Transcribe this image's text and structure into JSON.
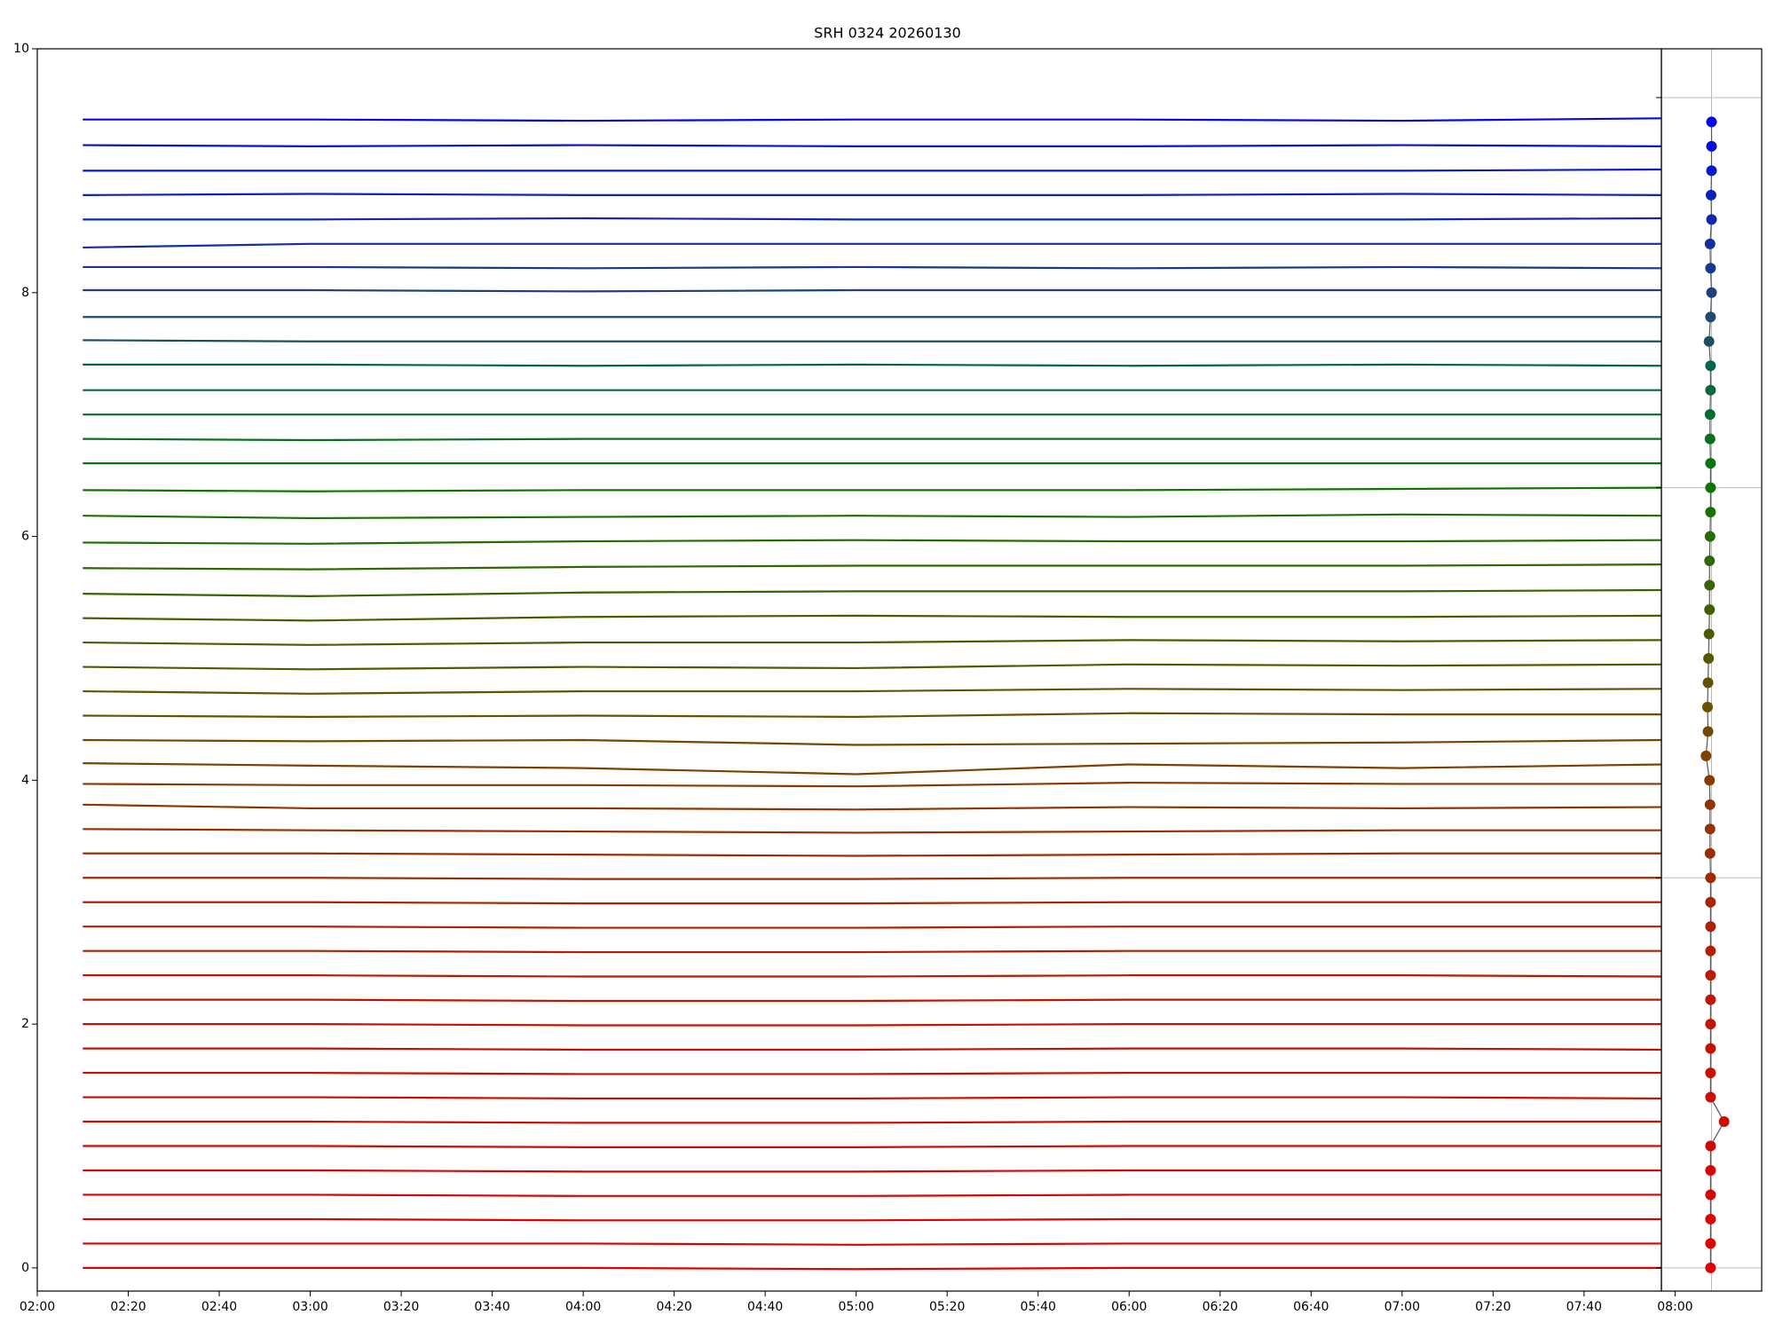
{
  "chart_data": [
    {
      "type": "line",
      "title": "SRH 0324 20260130",
      "x": [
        130,
        180,
        240,
        300,
        360,
        420,
        477
      ],
      "xlim": [
        120,
        477
      ],
      "xticks": [
        {
          "value": 120,
          "label": "02:00"
        },
        {
          "value": 140,
          "label": "02:20"
        },
        {
          "value": 160,
          "label": "02:40"
        },
        {
          "value": 180,
          "label": "03:00"
        },
        {
          "value": 200,
          "label": "03:20"
        },
        {
          "value": 220,
          "label": "03:40"
        },
        {
          "value": 240,
          "label": "04:00"
        },
        {
          "value": 260,
          "label": "04:20"
        },
        {
          "value": 280,
          "label": "04:40"
        },
        {
          "value": 300,
          "label": "05:00"
        },
        {
          "value": 320,
          "label": "05:20"
        },
        {
          "value": 340,
          "label": "05:40"
        },
        {
          "value": 360,
          "label": "06:00"
        },
        {
          "value": 380,
          "label": "06:20"
        },
        {
          "value": 400,
          "label": "06:40"
        },
        {
          "value": 420,
          "label": "07:00"
        },
        {
          "value": 440,
          "label": "07:20"
        },
        {
          "value": 460,
          "label": "07:40"
        },
        {
          "value": 480,
          "label": "08:00"
        }
      ],
      "ylim": [
        -0.19,
        10
      ],
      "yticks": [
        0,
        2,
        4,
        6,
        8,
        10
      ],
      "series": [
        {
          "color": "#e00000",
          "values": [
            0.0,
            0.0,
            0.0,
            -0.01,
            0.0,
            0.0,
            0.0
          ]
        },
        {
          "color": "#dd0200",
          "values": [
            0.2,
            0.2,
            0.2,
            0.19,
            0.2,
            0.2,
            0.2
          ]
        },
        {
          "color": "#da0400",
          "values": [
            0.4,
            0.4,
            0.39,
            0.39,
            0.4,
            0.4,
            0.4
          ]
        },
        {
          "color": "#d70600",
          "values": [
            0.6,
            0.6,
            0.59,
            0.59,
            0.6,
            0.6,
            0.6
          ]
        },
        {
          "color": "#d40800",
          "values": [
            0.8,
            0.8,
            0.79,
            0.79,
            0.8,
            0.8,
            0.8
          ]
        },
        {
          "color": "#d10a00",
          "values": [
            1.0,
            1.0,
            0.99,
            0.99,
            1.0,
            1.0,
            1.0
          ]
        },
        {
          "color": "#ce0c00",
          "values": [
            1.2,
            1.2,
            1.19,
            1.19,
            1.2,
            1.2,
            1.2
          ]
        },
        {
          "color": "#cb0e00",
          "values": [
            1.4,
            1.4,
            1.39,
            1.39,
            1.4,
            1.4,
            1.39
          ]
        },
        {
          "color": "#c81000",
          "values": [
            1.6,
            1.6,
            1.59,
            1.59,
            1.6,
            1.6,
            1.6
          ]
        },
        {
          "color": "#c51200",
          "values": [
            1.8,
            1.8,
            1.79,
            1.79,
            1.8,
            1.8,
            1.79
          ]
        },
        {
          "color": "#c21400",
          "values": [
            2.0,
            2.0,
            1.99,
            1.99,
            2.0,
            2.0,
            2.0
          ]
        },
        {
          "color": "#bf1600",
          "values": [
            2.2,
            2.2,
            2.19,
            2.19,
            2.2,
            2.2,
            2.2
          ]
        },
        {
          "color": "#b91a00",
          "values": [
            2.4,
            2.4,
            2.39,
            2.39,
            2.4,
            2.4,
            2.39
          ]
        },
        {
          "color": "#b31e00",
          "values": [
            2.6,
            2.6,
            2.59,
            2.59,
            2.6,
            2.6,
            2.6
          ]
        },
        {
          "color": "#ad2200",
          "values": [
            2.8,
            2.8,
            2.79,
            2.79,
            2.8,
            2.8,
            2.8
          ]
        },
        {
          "color": "#a72600",
          "values": [
            3.0,
            3.0,
            2.99,
            2.99,
            3.0,
            3.0,
            3.0
          ]
        },
        {
          "color": "#a12a00",
          "values": [
            3.2,
            3.2,
            3.19,
            3.19,
            3.2,
            3.2,
            3.2
          ]
        },
        {
          "color": "#9b2e00",
          "values": [
            3.4,
            3.4,
            3.39,
            3.38,
            3.39,
            3.4,
            3.4
          ]
        },
        {
          "color": "#953200",
          "values": [
            3.6,
            3.59,
            3.58,
            3.57,
            3.58,
            3.59,
            3.59
          ]
        },
        {
          "color": "#8f3600",
          "values": [
            3.8,
            3.77,
            3.77,
            3.76,
            3.78,
            3.77,
            3.78
          ]
        },
        {
          "color": "#893a00",
          "values": [
            3.97,
            3.96,
            3.96,
            3.95,
            3.98,
            3.97,
            3.97
          ]
        },
        {
          "color": "#7f4000",
          "values": [
            4.14,
            4.12,
            4.1,
            4.05,
            4.13,
            4.1,
            4.13
          ]
        },
        {
          "color": "#744800",
          "values": [
            4.33,
            4.32,
            4.33,
            4.29,
            4.3,
            4.31,
            4.33
          ]
        },
        {
          "color": "#6a5000",
          "values": [
            4.53,
            4.52,
            4.53,
            4.52,
            4.55,
            4.54,
            4.54
          ]
        },
        {
          "color": "#605400",
          "values": [
            4.73,
            4.71,
            4.73,
            4.73,
            4.75,
            4.74,
            4.75
          ]
        },
        {
          "color": "#565800",
          "values": [
            4.93,
            4.91,
            4.93,
            4.92,
            4.95,
            4.94,
            4.95
          ]
        },
        {
          "color": "#4c5c00",
          "values": [
            5.13,
            5.11,
            5.13,
            5.13,
            5.15,
            5.14,
            5.15
          ]
        },
        {
          "color": "#426000",
          "values": [
            5.33,
            5.31,
            5.34,
            5.35,
            5.34,
            5.34,
            5.35
          ]
        },
        {
          "color": "#386400",
          "values": [
            5.53,
            5.51,
            5.54,
            5.55,
            5.55,
            5.55,
            5.56
          ]
        },
        {
          "color": "#2e6800",
          "values": [
            5.74,
            5.73,
            5.75,
            5.76,
            5.76,
            5.76,
            5.77
          ]
        },
        {
          "color": "#246c00",
          "values": [
            5.95,
            5.94,
            5.96,
            5.97,
            5.96,
            5.96,
            5.97
          ]
        },
        {
          "color": "#1a7000",
          "values": [
            6.17,
            6.15,
            6.16,
            6.17,
            6.16,
            6.18,
            6.17
          ]
        },
        {
          "color": "#107400",
          "values": [
            6.38,
            6.37,
            6.38,
            6.38,
            6.38,
            6.39,
            6.4
          ]
        },
        {
          "color": "#0a7410",
          "values": [
            6.6,
            6.6,
            6.6,
            6.6,
            6.6,
            6.6,
            6.6
          ]
        },
        {
          "color": "#087020",
          "values": [
            6.8,
            6.79,
            6.8,
            6.8,
            6.8,
            6.8,
            6.8
          ]
        },
        {
          "color": "#066c30",
          "values": [
            7.0,
            7.0,
            7.0,
            7.0,
            7.0,
            7.0,
            7.0
          ]
        },
        {
          "color": "#056840",
          "values": [
            7.2,
            7.2,
            7.2,
            7.2,
            7.2,
            7.2,
            7.2
          ]
        },
        {
          "color": "#046450",
          "values": [
            7.41,
            7.41,
            7.4,
            7.41,
            7.4,
            7.41,
            7.4
          ]
        },
        {
          "color": "#1a5060",
          "values": [
            7.61,
            7.6,
            7.6,
            7.6,
            7.6,
            7.6,
            7.6
          ]
        },
        {
          "color": "#204870",
          "values": [
            7.8,
            7.8,
            7.8,
            7.8,
            7.8,
            7.8,
            7.8
          ]
        },
        {
          "color": "#1c4080",
          "values": [
            8.02,
            8.02,
            8.01,
            8.02,
            8.02,
            8.02,
            8.02
          ]
        },
        {
          "color": "#183890",
          "values": [
            8.21,
            8.21,
            8.2,
            8.21,
            8.2,
            8.21,
            8.2
          ]
        },
        {
          "color": "#1430a0",
          "values": [
            8.37,
            8.4,
            8.4,
            8.4,
            8.4,
            8.4,
            8.4
          ]
        },
        {
          "color": "#1028b0",
          "values": [
            8.6,
            8.6,
            8.61,
            8.6,
            8.6,
            8.6,
            8.61
          ]
        },
        {
          "color": "#0c20c0",
          "values": [
            8.8,
            8.81,
            8.8,
            8.8,
            8.8,
            8.81,
            8.8
          ]
        },
        {
          "color": "#0818d0",
          "values": [
            9.0,
            9.0,
            9.0,
            9.0,
            9.0,
            9.0,
            9.01
          ]
        },
        {
          "color": "#0410e0",
          "values": [
            9.21,
            9.2,
            9.21,
            9.2,
            9.2,
            9.21,
            9.2
          ]
        },
        {
          "color": "#0008ee",
          "values": [
            9.42,
            9.42,
            9.41,
            9.42,
            9.42,
            9.41,
            9.43
          ]
        }
      ]
    },
    {
      "type": "scatter",
      "xlim": [
        -1,
        1
      ],
      "ylim": [
        -0.19,
        10
      ],
      "yticks": [
        0,
        3.2,
        6.4,
        9.6
      ],
      "x": [
        -0.02,
        -0.02,
        -0.02,
        -0.02,
        -0.02,
        -0.02,
        0.25,
        -0.02,
        -0.02,
        -0.02,
        -0.02,
        -0.02,
        -0.02,
        -0.02,
        -0.02,
        -0.02,
        -0.02,
        -0.03,
        -0.03,
        -0.03,
        -0.04,
        -0.11,
        -0.07,
        -0.08,
        -0.07,
        -0.06,
        -0.05,
        -0.04,
        -0.04,
        -0.04,
        -0.03,
        -0.02,
        -0.02,
        -0.02,
        -0.03,
        -0.03,
        -0.02,
        -0.02,
        -0.05,
        -0.02,
        0.0,
        -0.02,
        -0.03,
        0.0,
        -0.01,
        0.0,
        0.0,
        0.0
      ],
      "y": [
        0,
        0.2,
        0.4,
        0.6,
        0.8,
        1.0,
        1.2,
        1.4,
        1.6,
        1.8,
        2.0,
        2.2,
        2.4,
        2.6,
        2.8,
        3.0,
        3.2,
        3.4,
        3.6,
        3.8,
        4.0,
        4.2,
        4.4,
        4.6,
        4.8,
        5.0,
        5.2,
        5.4,
        5.6,
        5.8,
        6.0,
        6.2,
        6.4,
        6.6,
        6.8,
        7.0,
        7.2,
        7.4,
        7.6,
        7.8,
        8.0,
        8.2,
        8.4,
        8.6,
        8.8,
        9.0,
        9.2,
        9.4
      ]
    }
  ]
}
